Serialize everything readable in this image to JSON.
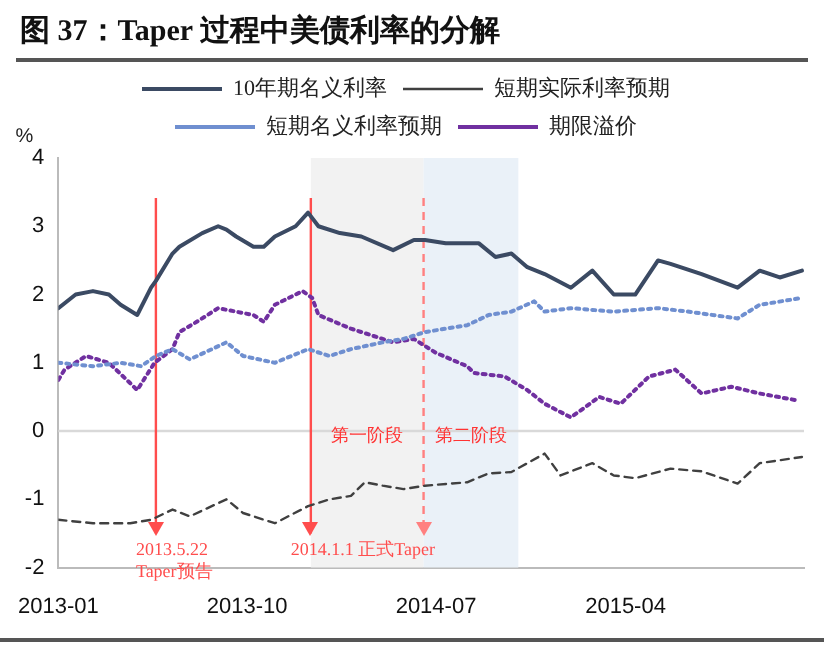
{
  "chart_data": {
    "type": "line",
    "title": "图 37：Taper 过程中美债利率的分解",
    "ylabel": "%",
    "xlim": [
      "2013-01-01",
      "2015-12-15"
    ],
    "xticks": [
      "2013-01",
      "2013-10",
      "2014-07",
      "2015-04"
    ],
    "ylim": [
      -2,
      4
    ],
    "yticks": [
      -2,
      -1,
      0,
      1,
      2,
      3,
      4
    ],
    "grid": false,
    "legend": "top",
    "marker": "none",
    "series": [
      {
        "name": "10年期名义利率",
        "color": "#3b4a63",
        "line_style": "solid",
        "x": [
          "2013-01-01",
          "2013-01-26",
          "2013-02-20",
          "2013-03-15",
          "2013-04-01",
          "2013-04-25",
          "2013-05-15",
          "2013-05-22",
          "2013-06-15",
          "2013-06-25",
          "2013-07-28",
          "2013-08-20",
          "2013-09-01",
          "2013-09-15",
          "2013-10-10",
          "2013-10-25",
          "2013-11-10",
          "2013-12-10",
          "2013-12-28",
          "2014-01-12",
          "2014-02-12",
          "2014-03-15",
          "2014-04-30",
          "2014-05-30",
          "2014-06-15",
          "2014-07-15",
          "2014-09-01",
          "2014-09-25",
          "2014-10-18",
          "2014-11-10",
          "2014-12-05",
          "2015-01-12",
          "2015-02-12",
          "2015-03-15",
          "2015-04-15",
          "2015-05-18",
          "2015-06-05",
          "2015-07-20",
          "2015-09-10",
          "2015-10-12",
          "2015-11-10",
          "2015-12-12"
        ],
        "values": [
          1.8,
          2.0,
          2.05,
          2.0,
          1.85,
          1.7,
          2.1,
          2.2,
          2.6,
          2.7,
          2.9,
          3.0,
          2.95,
          2.85,
          2.7,
          2.7,
          2.85,
          3.0,
          3.2,
          3.0,
          2.9,
          2.85,
          2.65,
          2.8,
          2.8,
          2.75,
          2.75,
          2.55,
          2.6,
          2.4,
          2.3,
          2.1,
          2.35,
          2.0,
          2.0,
          2.5,
          2.45,
          2.3,
          2.1,
          2.35,
          2.25,
          2.35
        ]
      },
      {
        "name": "短期实际利率预期",
        "color": "#404040",
        "line_style": "dashed",
        "x": [
          "2013-01-01",
          "2013-02-20",
          "2013-04-15",
          "2013-05-15",
          "2013-06-15",
          "2013-07-10",
          "2013-09-01",
          "2013-09-25",
          "2013-11-10",
          "2013-12-28",
          "2014-01-28",
          "2014-02-28",
          "2014-03-20",
          "2014-04-15",
          "2014-05-15",
          "2014-06-15",
          "2014-08-15",
          "2014-09-15",
          "2014-10-18",
          "2014-12-05",
          "2014-12-28",
          "2015-02-12",
          "2015-03-15",
          "2015-04-15",
          "2015-06-05",
          "2015-07-20",
          "2015-09-10",
          "2015-10-12",
          "2015-12-12"
        ],
        "values": [
          -1.3,
          -1.35,
          -1.35,
          -1.3,
          -1.15,
          -1.25,
          -1.0,
          -1.2,
          -1.35,
          -1.1,
          -1.0,
          -0.95,
          -0.75,
          -0.8,
          -0.85,
          -0.8,
          -0.75,
          -0.62,
          -0.6,
          -0.33,
          -0.65,
          -0.47,
          -0.65,
          -0.69,
          -0.55,
          -0.59,
          -0.77,
          -0.47,
          -0.38
        ]
      },
      {
        "name": "短期名义利率预期",
        "color": "#6f8fd0",
        "line_style": "dotted",
        "x": [
          "2013-01-01",
          "2013-02-20",
          "2013-04-01",
          "2013-05-01",
          "2013-05-22",
          "2013-06-15",
          "2013-07-10",
          "2013-09-01",
          "2013-09-25",
          "2013-11-10",
          "2013-12-28",
          "2014-01-28",
          "2014-02-28",
          "2014-04-15",
          "2014-05-15",
          "2014-06-15",
          "2014-07-15",
          "2014-08-15",
          "2014-09-15",
          "2014-10-18",
          "2014-11-20",
          "2014-12-05",
          "2015-01-12",
          "2015-03-15",
          "2015-05-18",
          "2015-06-30",
          "2015-09-10",
          "2015-10-12",
          "2015-12-12"
        ],
        "values": [
          1.0,
          0.95,
          1.0,
          0.95,
          1.1,
          1.2,
          1.05,
          1.3,
          1.1,
          1.0,
          1.2,
          1.1,
          1.2,
          1.3,
          1.35,
          1.45,
          1.5,
          1.55,
          1.7,
          1.75,
          1.9,
          1.75,
          1.8,
          1.75,
          1.8,
          1.75,
          1.65,
          1.85,
          1.95
        ]
      },
      {
        "name": "期限溢价",
        "color": "#7030a0",
        "line_style": "dotted",
        "x": [
          "2013-01-01",
          "2013-01-10",
          "2013-02-10",
          "2013-03-15",
          "2013-04-15",
          "2013-04-25",
          "2013-05-20",
          "2013-06-15",
          "2013-06-25",
          "2013-07-20",
          "2013-08-20",
          "2013-10-10",
          "2013-10-25",
          "2013-11-10",
          "2013-12-10",
          "2013-12-20",
          "2014-01-03",
          "2014-01-12",
          "2014-02-28",
          "2014-04-30",
          "2014-05-30",
          "2014-06-30",
          "2014-08-15",
          "2014-08-25",
          "2014-10-08",
          "2014-11-10",
          "2014-12-05",
          "2015-01-12",
          "2015-02-22",
          "2015-03-25",
          "2015-05-05",
          "2015-06-12",
          "2015-07-20",
          "2015-09-01",
          "2015-10-12",
          "2015-12-05"
        ],
        "values": [
          0.75,
          0.9,
          1.1,
          1.0,
          0.7,
          0.6,
          1.0,
          1.2,
          1.45,
          1.6,
          1.8,
          1.7,
          1.6,
          1.85,
          2.0,
          2.05,
          1.95,
          1.7,
          1.5,
          1.3,
          1.35,
          1.15,
          0.95,
          0.85,
          0.8,
          0.6,
          0.4,
          0.2,
          0.5,
          0.4,
          0.8,
          0.9,
          0.55,
          0.65,
          0.55,
          0.45
        ]
      }
    ],
    "ref_lines": [
      {
        "axis": "y",
        "value": 0,
        "color": "#d9d9d9",
        "line_style": "solid"
      },
      {
        "axis": "x",
        "value": "2013-05-22",
        "label": "2013.5.22 Taper预告",
        "color": "#ff4d4d",
        "line_style": "solid"
      },
      {
        "axis": "x",
        "value": "2014-01-01",
        "label": "2014.1.1 正式Taper",
        "color": "#ff4d4d",
        "line_style": "solid"
      },
      {
        "axis": "x",
        "value": "2014-06-13",
        "color": "#ff8080",
        "line_style": "dashed"
      }
    ],
    "bands": [
      {
        "axis": "x",
        "from": "2014-01-01",
        "to": "2014-06-13",
        "label": "第一阶段",
        "color": "#f2f2f2"
      },
      {
        "axis": "x",
        "from": "2014-06-13",
        "to": "2014-10-28",
        "label": "第二阶段",
        "color": "#eaf1f8"
      }
    ]
  }
}
